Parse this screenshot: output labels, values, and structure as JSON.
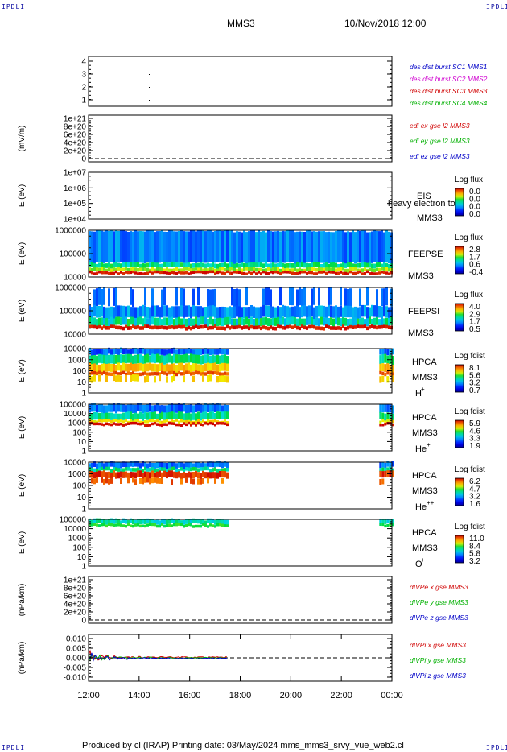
{
  "header": {
    "corner_label": "IPDLI",
    "title": "MMS3",
    "datetime": "10/Nov/2018 12:00"
  },
  "footer": {
    "text": "Produced by cl (IRAP)   Printing date: 03/May/2024   mms_mms3_srvy_vue_web2.cl"
  },
  "chart_data": {
    "type": "heatmap",
    "x_ticks": [
      "12:00",
      "14:00",
      "16:00",
      "18:00",
      "20:00",
      "22:00",
      "00:00"
    ],
    "x_range_hours": [
      12,
      24
    ],
    "panels": [
      {
        "id": "burst",
        "kind": "burst",
        "ylabel": "",
        "yticks": [
          "4",
          "3",
          "2",
          "1"
        ],
        "legend": [
          {
            "text": "des dist burst SC1 MMS1",
            "color": "#0000c8"
          },
          {
            "text": "des dist burst SC2 MMS2",
            "color": "#d000d0"
          },
          {
            "text": "des dist burst SC3 MMS3",
            "color": "#d00000"
          },
          {
            "text": "des dist burst SC4 MMS4",
            "color": "#00b000"
          }
        ]
      },
      {
        "id": "edi",
        "kind": "line",
        "ylabel": "(mV/m)",
        "yticks": [
          "1e+21",
          "8e+20",
          "6e+20",
          "4e+20",
          "2e+20",
          "0"
        ],
        "legend": [
          {
            "text": "edi ex gse l2 MMS3",
            "color": "#d00000"
          },
          {
            "text": "edi ey gse l2 MMS3",
            "color": "#00b000"
          },
          {
            "text": "edi ez gse l2 MMS3",
            "color": "#0000c8"
          }
        ]
      },
      {
        "id": "eis",
        "kind": "empty-spectrogram",
        "ylabel": "E (eV)",
        "yticks": [
          "1e+07",
          "1e+06",
          "1e+05",
          "1e+04"
        ],
        "instrument": "EIS",
        "overlay": "heavy electron to",
        "spacecraft": "MMS3",
        "colorbar_title": "Log flux",
        "colorbar_ticks": [
          "0.0",
          "0.0",
          "0.0",
          "0.0"
        ]
      },
      {
        "id": "feepse",
        "kind": "spectrogram",
        "ylabel": "E (eV)",
        "yticks": [
          "1000000",
          "100000",
          "10000"
        ],
        "instrument": "FEEPSE",
        "spacecraft": "MMS3",
        "colorbar_title": "Log flux",
        "colorbar_ticks": [
          "2.8",
          "1.7",
          "0.6",
          "-0.4"
        ],
        "coverage_hours": [
          12,
          24
        ]
      },
      {
        "id": "feepsi",
        "kind": "spectrogram",
        "ylabel": "E (eV)",
        "yticks": [
          "1000000",
          "100000",
          "10000"
        ],
        "instrument": "FEEPSI",
        "spacecraft": "MMS3",
        "colorbar_title": "Log flux",
        "colorbar_ticks": [
          "4.0",
          "2.9",
          "1.7",
          "0.5"
        ],
        "coverage_hours": [
          12,
          24
        ]
      },
      {
        "id": "hpca-h",
        "kind": "spectrogram",
        "ylabel": "E (eV)",
        "yticks": [
          "10000",
          "1000",
          "100",
          "10",
          "1"
        ],
        "instrument": "HPCA",
        "spacecraft": "MMS3",
        "species": "H",
        "species_sup": "+",
        "colorbar_title": "Log fdist",
        "colorbar_ticks": [
          "8.1",
          "5.6",
          "3.2",
          "0.7"
        ],
        "coverage_hours": [
          [
            12,
            17.5
          ],
          [
            23.5,
            24
          ]
        ]
      },
      {
        "id": "hpca-he1",
        "kind": "spectrogram",
        "ylabel": "E (eV)",
        "yticks": [
          "100000",
          "10000",
          "1000",
          "100",
          "10",
          "1"
        ],
        "instrument": "HPCA",
        "spacecraft": "MMS3",
        "species": "He",
        "species_sup": "+",
        "colorbar_title": "Log fdist",
        "colorbar_ticks": [
          "5.9",
          "4.6",
          "3.3",
          "1.9"
        ],
        "coverage_hours": [
          [
            12,
            17.5
          ],
          [
            23.5,
            24
          ]
        ]
      },
      {
        "id": "hpca-he2",
        "kind": "spectrogram",
        "ylabel": "E (eV)",
        "yticks": [
          "10000",
          "1000",
          "100",
          "10",
          "1"
        ],
        "instrument": "HPCA",
        "spacecraft": "MMS3",
        "species": "He",
        "species_sup": "++",
        "colorbar_title": "Log fdist",
        "colorbar_ticks": [
          "6.2",
          "4.7",
          "3.2",
          "1.6"
        ],
        "coverage_hours": [
          [
            12,
            17.5
          ],
          [
            23.5,
            24
          ]
        ]
      },
      {
        "id": "hpca-o",
        "kind": "spectrogram",
        "ylabel": "E (eV)",
        "yticks": [
          "100000",
          "10000",
          "1000",
          "100",
          "10",
          "1"
        ],
        "instrument": "HPCA",
        "spacecraft": "MMS3",
        "species": "O",
        "species_sup": "+",
        "colorbar_title": "Log fdist",
        "colorbar_ticks": [
          "11.0",
          "8.4",
          "5.8",
          "3.2"
        ],
        "coverage_hours": [
          [
            12,
            17.5
          ],
          [
            23.5,
            24
          ]
        ]
      },
      {
        "id": "divpe",
        "kind": "line",
        "ylabel": "(nPa/km)",
        "yticks": [
          "1e+21",
          "8e+20",
          "6e+20",
          "4e+20",
          "2e+20",
          "0"
        ],
        "legend": [
          {
            "text": "dIVPe x gse MMS3",
            "color": "#d00000"
          },
          {
            "text": "dIVPe y gse MMS3",
            "color": "#00b000"
          },
          {
            "text": "dIVPe z gse MMS3",
            "color": "#0000c8"
          }
        ]
      },
      {
        "id": "divpi",
        "kind": "line",
        "ylabel": "(nPa/km)",
        "yticks": [
          "0.010",
          "0.005",
          "0.000",
          "-0.005",
          "-0.010"
        ],
        "ylim": [
          -0.013,
          0.013
        ],
        "coverage_hours": [
          12,
          17.5
        ],
        "legend": [
          {
            "text": "dIVPi x gse MMS3",
            "color": "#d00000"
          },
          {
            "text": "dIVPi y gse MMS3",
            "color": "#00b000"
          },
          {
            "text": "dIVPi z gse MMS3",
            "color": "#0000c8"
          }
        ]
      }
    ]
  }
}
